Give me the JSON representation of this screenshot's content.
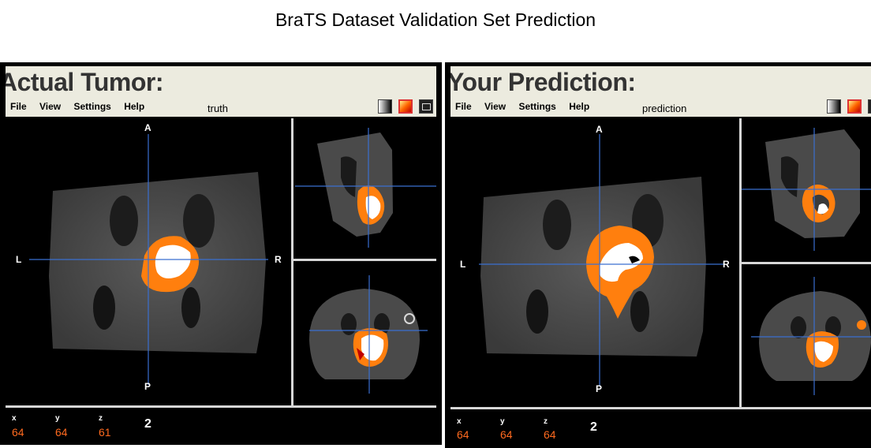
{
  "main_title": "BraTS Dataset Validation Set Prediction",
  "viewers": [
    {
      "title": "Actual Tumor:",
      "menu": [
        "File",
        "View",
        "Settings",
        "Help"
      ],
      "volume_name": "truth",
      "orientation": {
        "anterior": "A",
        "posterior": "P",
        "left": "L",
        "right": "R"
      },
      "coords": {
        "x_label": "x",
        "y_label": "y",
        "z_label": "z",
        "x": "64",
        "y": "64",
        "z": "61"
      },
      "frame": "2"
    },
    {
      "title": "Your Prediction:",
      "menu": [
        "File",
        "View",
        "Settings",
        "Help"
      ],
      "volume_name": "prediction",
      "orientation": {
        "anterior": "A",
        "posterior": "P",
        "left": "L",
        "right": "R"
      },
      "coords": {
        "x_label": "x",
        "y_label": "y",
        "z_label": "z",
        "x": "64",
        "y": "64",
        "z": "64"
      },
      "frame": "2"
    }
  ],
  "colors": {
    "overlay": "#ff7f0e",
    "core": "#ffffff",
    "crosshair": "#3a6fd0",
    "coord_value": "#ff6a1f",
    "toolbar": "#ecebdf"
  },
  "icons": [
    "grayscale-colormap-icon",
    "hot-colormap-icon",
    "screenshot-icon"
  ]
}
